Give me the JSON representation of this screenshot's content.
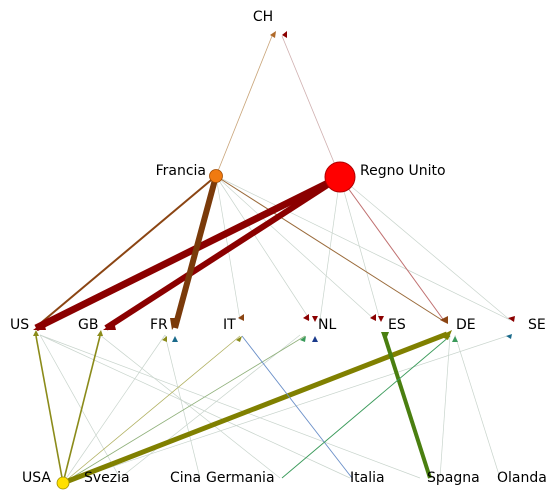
{
  "nodes": [
    {
      "label": "CH"
    },
    {
      "label": "Francia"
    },
    {
      "label": "Regno Unito"
    },
    {
      "label": "US"
    },
    {
      "label": "GB"
    },
    {
      "label": "FR"
    },
    {
      "label": "IT"
    },
    {
      "label": "NL"
    },
    {
      "label": "ES"
    },
    {
      "label": "DE"
    },
    {
      "label": "SE"
    },
    {
      "label": "USA"
    },
    {
      "label": "Svezia"
    },
    {
      "label": "Cina"
    },
    {
      "label": "Germania"
    },
    {
      "label": "Italia"
    },
    {
      "label": "Spagna"
    },
    {
      "label": "Olanda"
    }
  ]
}
